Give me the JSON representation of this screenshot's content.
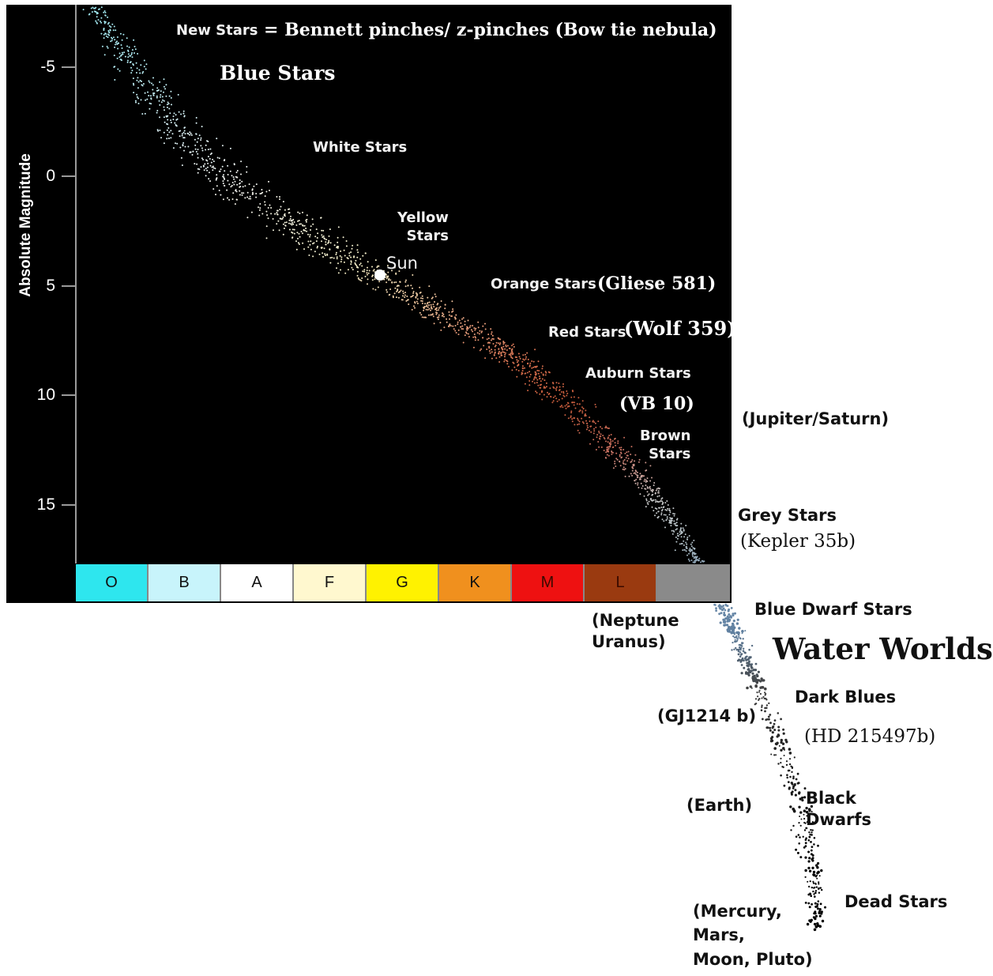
{
  "chart_data": {
    "type": "scatter",
    "ylabel": "Absolute Magnitude",
    "y_ticks": [
      "-5",
      "0",
      "5",
      "10",
      "15"
    ],
    "y_inverted": true,
    "spectral_classes": [
      {
        "label": "O",
        "color": "#2ee6ee"
      },
      {
        "label": "B",
        "color": "#c8f4fb"
      },
      {
        "label": "A",
        "color": "#ffffff"
      },
      {
        "label": "F",
        "color": "#fff8cf"
      },
      {
        "label": "G",
        "color": "#fff200"
      },
      {
        "label": "K",
        "color": "#f0901e"
      },
      {
        "label": "M",
        "color": "#ee1111"
      },
      {
        "label": "L",
        "color": "#9a3a10"
      },
      {
        "label": "",
        "color": "#8a8a8a"
      }
    ],
    "markers": [
      {
        "label": "Sun",
        "magnitude": 4.5,
        "class": "G"
      }
    ]
  },
  "labels": {
    "new_stars": "New Stars",
    "bennett": "= Bennett pinches/ z-pinches (Bow tie nebula)",
    "blue_stars": "Blue Stars",
    "white_stars": "White Stars",
    "yellow_stars": "Yellow\nStars",
    "sun": "Sun",
    "orange_stars": "Orange Stars",
    "gliese": "(Gliese 581)",
    "red_stars": "Red Stars",
    "wolf": "(Wolf 359)",
    "auburn_stars": "Auburn Stars",
    "vb10": "(VB 10)",
    "brown_stars": "Brown\nStars",
    "jupiter": "(Jupiter/Saturn)",
    "grey_stars": "Grey Stars",
    "kepler": "(Kepler 35b)",
    "neptune": "(Neptune\nUranus)",
    "blue_dwarf": "Blue Dwarf Stars",
    "water_worlds": "Water Worlds",
    "dark_blues": "Dark Blues",
    "gj1214": "(GJ1214 b)",
    "hd": "(HD 215497b)",
    "earth": "(Earth)",
    "black_dwarfs": "Black\nDwarfs",
    "mercury": "(Mercury,\nMars,\nMoon, Pluto)",
    "dead_stars": "Dead Stars"
  }
}
